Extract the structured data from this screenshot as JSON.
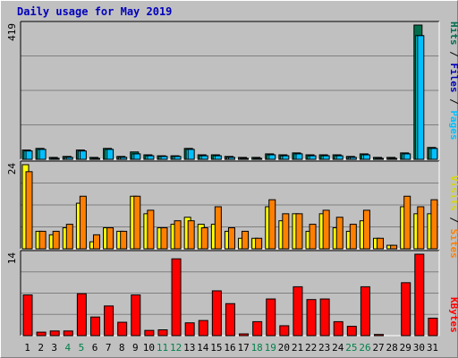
{
  "title": "Daily usage for May 2019",
  "colors": {
    "background": "#c0c0c0",
    "grid": "#808080",
    "hits": "#006e4d",
    "files": "#00ffff",
    "pages": "#00c0ff",
    "visits": "#ffff00",
    "sites": "#ff8000",
    "kbytes": "#ff0000",
    "title": "#0000bb",
    "day_normal": "#000000",
    "day_weekend": "#00824a"
  },
  "legend": {
    "top": [
      {
        "text": "Pages",
        "color": "#00c0ff"
      },
      {
        "text": " / ",
        "color": "#000000"
      },
      {
        "text": "Files",
        "color": "#0000bb"
      },
      {
        "text": " / ",
        "color": "#000000"
      },
      {
        "text": "Hits",
        "color": "#006e4d"
      }
    ],
    "middle": [
      {
        "text": "Sites",
        "color": "#ff8000"
      },
      {
        "text": " / ",
        "color": "#000000"
      },
      {
        "text": "Visits",
        "color": "#d8d800"
      }
    ],
    "bottom": [
      {
        "text": "KBytes",
        "color": "#ff0000"
      }
    ]
  },
  "chart_data": [
    {
      "type": "bar",
      "title": "Daily usage for May 2019",
      "panel": "hits-files-pages",
      "ylim": [
        0,
        419
      ],
      "ymax_label": "419",
      "categories": [
        "1",
        "2",
        "3",
        "4",
        "5",
        "6",
        "7",
        "8",
        "9",
        "10",
        "11",
        "12",
        "13",
        "14",
        "15",
        "16",
        "17",
        "18",
        "19",
        "20",
        "21",
        "22",
        "23",
        "24",
        "25",
        "26",
        "27",
        "28",
        "29",
        "30",
        "31"
      ],
      "weekend_days": [
        "4",
        "5",
        "11",
        "12",
        "18",
        "19",
        "25",
        "26"
      ],
      "series": [
        {
          "name": "Hits",
          "values": [
            29,
            34,
            6,
            9,
            29,
            6,
            34,
            9,
            23,
            14,
            11,
            11,
            34,
            14,
            14,
            9,
            6,
            6,
            17,
            14,
            20,
            14,
            14,
            14,
            9,
            17,
            6,
            6,
            20,
            419,
            37
          ]
        },
        {
          "name": "Files",
          "values": [
            26,
            31,
            3,
            6,
            26,
            3,
            31,
            6,
            17,
            11,
            9,
            9,
            31,
            11,
            11,
            6,
            3,
            3,
            14,
            11,
            17,
            11,
            11,
            11,
            6,
            14,
            3,
            3,
            17,
            386,
            34
          ]
        },
        {
          "name": "Pages",
          "values": [
            26,
            31,
            3,
            6,
            26,
            3,
            31,
            6,
            17,
            11,
            9,
            9,
            31,
            11,
            11,
            6,
            3,
            3,
            14,
            11,
            17,
            11,
            11,
            11,
            6,
            14,
            3,
            3,
            17,
            386,
            34
          ]
        }
      ]
    },
    {
      "type": "bar",
      "panel": "visits-sites",
      "ylim": [
        0,
        24
      ],
      "ymax_label": "24",
      "categories": [
        "1",
        "2",
        "3",
        "4",
        "5",
        "6",
        "7",
        "8",
        "9",
        "10",
        "11",
        "12",
        "13",
        "14",
        "15",
        "16",
        "17",
        "18",
        "19",
        "20",
        "21",
        "22",
        "23",
        "24",
        "25",
        "26",
        "27",
        "28",
        "29",
        "30",
        "31"
      ],
      "series": [
        {
          "name": "Visits",
          "values": [
            24,
            5,
            4,
            6,
            13,
            2,
            6,
            5,
            15,
            10,
            6,
            7,
            9,
            7,
            7,
            5,
            3,
            3,
            12,
            8,
            10,
            5,
            10,
            6,
            5,
            8,
            3,
            1,
            12,
            10,
            10
          ]
        },
        {
          "name": "Sites",
          "values": [
            22,
            5,
            5,
            7,
            15,
            4,
            6,
            5,
            15,
            11,
            6,
            8,
            8,
            6,
            12,
            6,
            5,
            3,
            14,
            10,
            10,
            7,
            11,
            9,
            7,
            11,
            3,
            1,
            15,
            12,
            14
          ]
        }
      ]
    },
    {
      "type": "bar",
      "panel": "kbytes",
      "ylim": [
        0,
        14
      ],
      "ymax_label": "14",
      "categories": [
        "1",
        "2",
        "3",
        "4",
        "5",
        "6",
        "7",
        "8",
        "9",
        "10",
        "11",
        "12",
        "13",
        "14",
        "15",
        "16",
        "17",
        "18",
        "19",
        "20",
        "21",
        "22",
        "23",
        "24",
        "25",
        "26",
        "27",
        "28",
        "29",
        "30",
        "31"
      ],
      "series": [
        {
          "name": "KBytes",
          "values": [
            7,
            0.6,
            0.8,
            0.8,
            7.2,
            3.2,
            5.1,
            2.3,
            7,
            0.9,
            1,
            13.2,
            2.2,
            2.6,
            7.7,
            5.5,
            0.3,
            2.4,
            6.3,
            1.7,
            8.4,
            6.2,
            6.3,
            2.4,
            1.6,
            8.4,
            0.2,
            0,
            9.1,
            14.4,
            3
          ]
        }
      ]
    }
  ]
}
